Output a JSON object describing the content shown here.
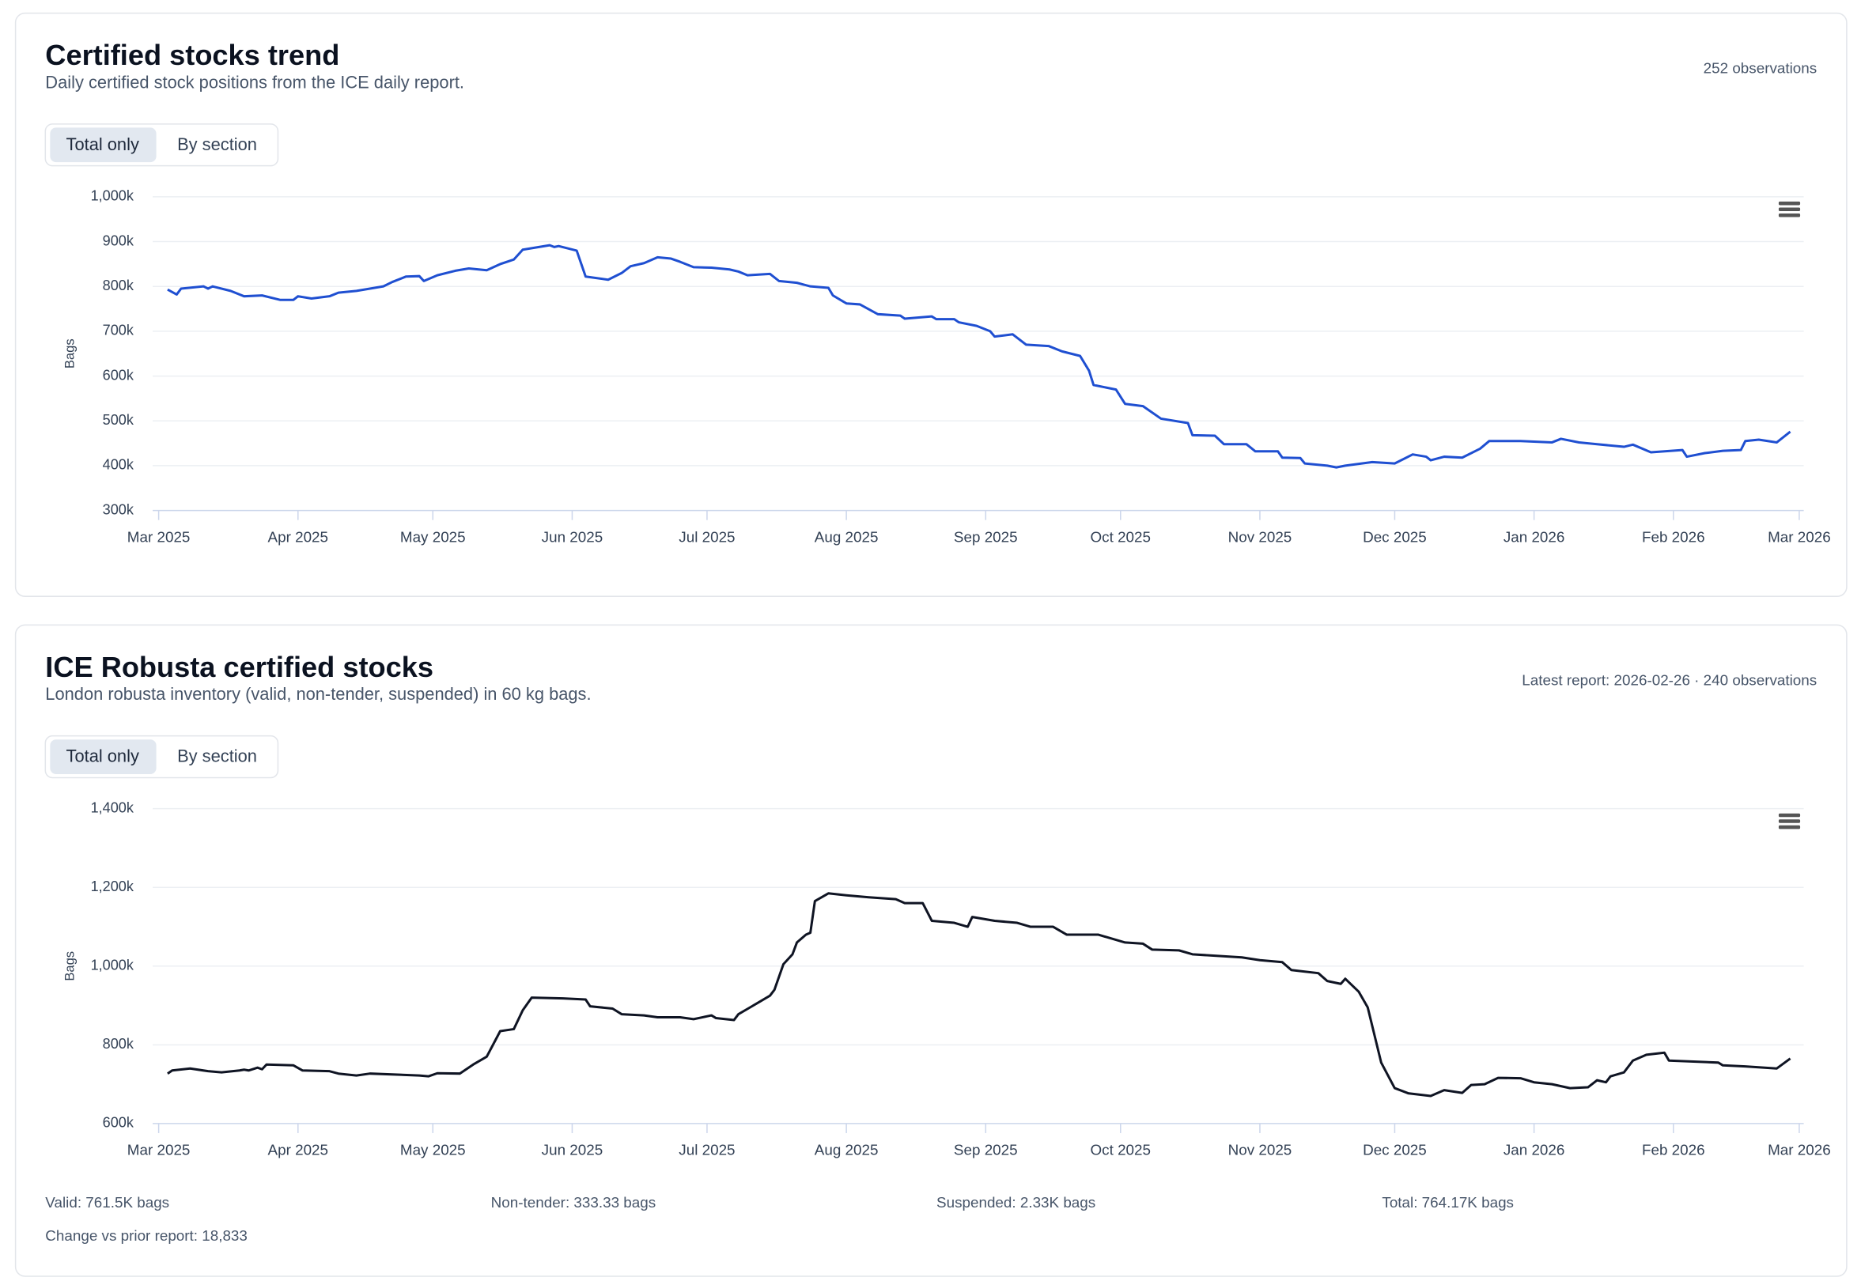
{
  "chart_data": [
    {
      "type": "line",
      "title": "Certified stocks trend",
      "subtitle": "Daily certified stock positions from the ICE daily report.",
      "meta": "252 observations",
      "toggle": [
        "Total only",
        "By section"
      ],
      "y_label": "Bags",
      "color": "#1f4fd1",
      "grid": true,
      "xlim": [
        0,
        366
      ],
      "xticks": [
        {
          "value": 0,
          "label": "Mar 2025"
        },
        {
          "value": 31,
          "label": "Apr 2025"
        },
        {
          "value": 61,
          "label": "May 2025"
        },
        {
          "value": 92,
          "label": "Jun 2025"
        },
        {
          "value": 122,
          "label": "Jul 2025"
        },
        {
          "value": 153,
          "label": "Aug 2025"
        },
        {
          "value": 184,
          "label": "Sep 2025"
        },
        {
          "value": 214,
          "label": "Oct 2025"
        },
        {
          "value": 245,
          "label": "Nov 2025"
        },
        {
          "value": 275,
          "label": "Dec 2025"
        },
        {
          "value": 306,
          "label": "Jan 2026"
        },
        {
          "value": 337,
          "label": "Feb 2026"
        },
        {
          "value": 365,
          "label": "Mar 2026"
        }
      ],
      "ylim": [
        300000,
        1000000
      ],
      "yticks": [
        {
          "value": 300000,
          "label": "300k"
        },
        {
          "value": 400000,
          "label": "400k"
        },
        {
          "value": 500000,
          "label": "500k"
        },
        {
          "value": 600000,
          "label": "600k"
        },
        {
          "value": 700000,
          "label": "700k"
        },
        {
          "value": 800000,
          "label": "800k"
        },
        {
          "value": 900000,
          "label": "900k"
        },
        {
          "value": 1000000,
          "label": "1,000k"
        }
      ],
      "x": [
        2,
        4,
        5,
        10,
        11,
        12,
        16,
        19,
        23,
        27,
        30,
        31,
        34,
        38,
        40,
        44,
        50,
        52,
        55,
        58,
        59,
        62,
        66,
        69,
        73,
        76,
        79,
        81,
        87,
        88,
        89,
        93,
        95,
        100,
        103,
        105,
        108,
        111,
        114,
        116,
        119,
        123,
        127,
        129,
        131,
        136,
        138,
        142,
        145,
        149,
        150,
        153,
        156,
        160,
        165,
        166,
        172,
        173,
        177,
        178,
        182,
        185,
        186,
        190,
        193,
        198,
        201,
        205,
        207,
        208,
        213,
        215,
        219,
        223,
        229,
        230,
        235,
        237,
        242,
        244,
        249,
        250,
        254,
        255,
        260,
        262,
        264,
        270,
        275,
        279,
        282,
        283,
        286,
        290,
        294,
        296,
        303,
        310,
        312,
        316,
        320,
        326,
        328,
        332,
        339,
        340,
        344,
        348,
        352,
        353,
        356,
        360,
        363
      ],
      "values": [
        793000,
        782000,
        795000,
        800000,
        795000,
        800000,
        790000,
        778000,
        780000,
        770000,
        770000,
        778000,
        773000,
        778000,
        786000,
        790000,
        800000,
        810000,
        822000,
        823000,
        812000,
        825000,
        835000,
        840000,
        836000,
        850000,
        860000,
        882000,
        892000,
        888000,
        890000,
        880000,
        822000,
        815000,
        830000,
        845000,
        852000,
        865000,
        862000,
        855000,
        843000,
        842000,
        838000,
        833000,
        825000,
        828000,
        812000,
        808000,
        800000,
        797000,
        780000,
        762000,
        760000,
        738000,
        735000,
        728000,
        733000,
        727000,
        727000,
        720000,
        712000,
        700000,
        688000,
        693000,
        670000,
        667000,
        655000,
        645000,
        612000,
        580000,
        570000,
        538000,
        533000,
        505000,
        495000,
        468000,
        467000,
        448000,
        448000,
        432000,
        432000,
        418000,
        417000,
        405000,
        400000,
        396000,
        400000,
        408000,
        405000,
        425000,
        420000,
        412000,
        420000,
        418000,
        438000,
        455000,
        455000,
        452000,
        460000,
        452000,
        448000,
        442000,
        447000,
        430000,
        435000,
        420000,
        428000,
        433000,
        435000,
        455000,
        458000,
        452000,
        476000
      ]
    },
    {
      "type": "line",
      "title": "ICE Robusta certified stocks",
      "subtitle": "London robusta inventory (valid, non-tender, suspended) in 60 kg bags.",
      "meta": "Latest report: 2026-02-26 · 240 observations",
      "toggle": [
        "Total only",
        "By section"
      ],
      "y_label": "Bags",
      "color": "#0f1423",
      "grid": true,
      "stats": [
        "Valid: 761.5K bags",
        "Non-tender: 333.33 bags",
        "Suspended: 2.33K bags",
        "Total: 764.17K bags",
        "Change vs prior report: 18,833"
      ],
      "xlim": [
        0,
        366
      ],
      "xticks": [
        {
          "value": 0,
          "label": "Mar 2025"
        },
        {
          "value": 31,
          "label": "Apr 2025"
        },
        {
          "value": 61,
          "label": "May 2025"
        },
        {
          "value": 92,
          "label": "Jun 2025"
        },
        {
          "value": 122,
          "label": "Jul 2025"
        },
        {
          "value": 153,
          "label": "Aug 2025"
        },
        {
          "value": 184,
          "label": "Sep 2025"
        },
        {
          "value": 214,
          "label": "Oct 2025"
        },
        {
          "value": 245,
          "label": "Nov 2025"
        },
        {
          "value": 275,
          "label": "Dec 2025"
        },
        {
          "value": 306,
          "label": "Jan 2026"
        },
        {
          "value": 337,
          "label": "Feb 2026"
        },
        {
          "value": 365,
          "label": "Mar 2026"
        }
      ],
      "ylim": [
        600000,
        1400000
      ],
      "yticks": [
        {
          "value": 600000,
          "label": "600k"
        },
        {
          "value": 800000,
          "label": "800k"
        },
        {
          "value": 1000000,
          "label": "1,000k"
        },
        {
          "value": 1200000,
          "label": "1,200k"
        },
        {
          "value": 1400000,
          "label": "1,400k"
        }
      ],
      "x": [
        2,
        3,
        7,
        11,
        14,
        18,
        19,
        20,
        22,
        23,
        24,
        30,
        32,
        38,
        40,
        44,
        47,
        58,
        60,
        62,
        67,
        70,
        73,
        76,
        79,
        81,
        83,
        90,
        95,
        96,
        101,
        103,
        108,
        111,
        116,
        119,
        123,
        124,
        128,
        129,
        132,
        136,
        137,
        139,
        141,
        142,
        144,
        145,
        146,
        149,
        153,
        158,
        164,
        166,
        170,
        172,
        177,
        180,
        181,
        186,
        191,
        194,
        199,
        202,
        209,
        215,
        219,
        221,
        227,
        230,
        241,
        245,
        250,
        252,
        258,
        260,
        263,
        264,
        267,
        269,
        272,
        275,
        278,
        283,
        286,
        290,
        292,
        295,
        298,
        303,
        306,
        310,
        314,
        318,
        320,
        322,
        323,
        326,
        328,
        331,
        335,
        336,
        347,
        348,
        353,
        360,
        363
      ],
      "values": [
        727000,
        735000,
        740000,
        733000,
        730000,
        735000,
        737000,
        735000,
        742000,
        738000,
        750000,
        748000,
        735000,
        733000,
        727000,
        722000,
        727000,
        722000,
        720000,
        728000,
        727000,
        750000,
        770000,
        835000,
        840000,
        888000,
        920000,
        918000,
        915000,
        898000,
        892000,
        878000,
        875000,
        870000,
        870000,
        865000,
        875000,
        868000,
        863000,
        878000,
        898000,
        925000,
        940000,
        1005000,
        1030000,
        1060000,
        1080000,
        1085000,
        1165000,
        1185000,
        1180000,
        1175000,
        1170000,
        1160000,
        1160000,
        1115000,
        1110000,
        1100000,
        1125000,
        1115000,
        1110000,
        1100000,
        1100000,
        1080000,
        1080000,
        1060000,
        1057000,
        1042000,
        1040000,
        1030000,
        1022000,
        1015000,
        1010000,
        990000,
        982000,
        962000,
        955000,
        968000,
        935000,
        895000,
        755000,
        690000,
        677000,
        670000,
        685000,
        678000,
        698000,
        700000,
        716000,
        715000,
        705000,
        700000,
        690000,
        692000,
        710000,
        705000,
        720000,
        730000,
        760000,
        775000,
        780000,
        760000,
        755000,
        748000,
        745000,
        740000,
        765000
      ]
    }
  ]
}
